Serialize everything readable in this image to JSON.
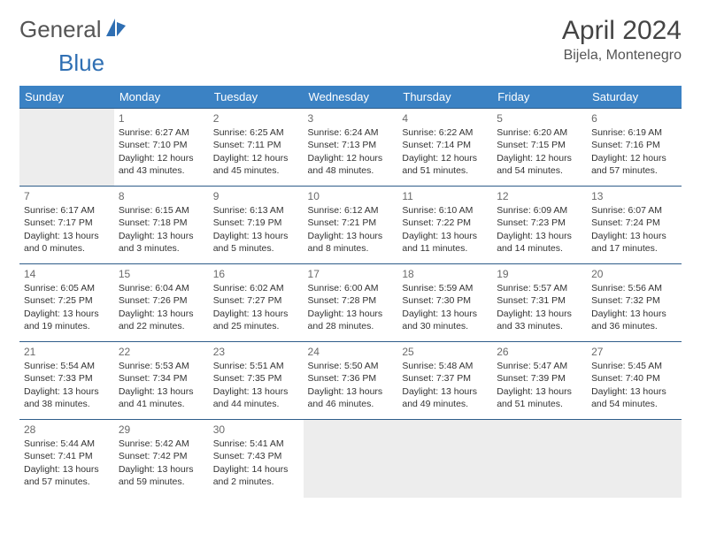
{
  "logo": {
    "part1": "General",
    "part2": "Blue",
    "text_color": "#6a6a6a",
    "accent_color": "#2f6fb3"
  },
  "title": "April 2024",
  "subtitle": "Bijela, Montenegro",
  "header_bg": "#3b82c4",
  "header_text": "#ffffff",
  "row_border": "#2f5d8a",
  "shaded_bg": "#ededed",
  "weekdays": [
    "Sunday",
    "Monday",
    "Tuesday",
    "Wednesday",
    "Thursday",
    "Friday",
    "Saturday"
  ],
  "weeks": [
    [
      {
        "blank": true,
        "shaded": true
      },
      {
        "day": "1",
        "sunrise": "6:27 AM",
        "sunset": "7:10 PM",
        "daylight": "12 hours and 43 minutes."
      },
      {
        "day": "2",
        "sunrise": "6:25 AM",
        "sunset": "7:11 PM",
        "daylight": "12 hours and 45 minutes."
      },
      {
        "day": "3",
        "sunrise": "6:24 AM",
        "sunset": "7:13 PM",
        "daylight": "12 hours and 48 minutes."
      },
      {
        "day": "4",
        "sunrise": "6:22 AM",
        "sunset": "7:14 PM",
        "daylight": "12 hours and 51 minutes."
      },
      {
        "day": "5",
        "sunrise": "6:20 AM",
        "sunset": "7:15 PM",
        "daylight": "12 hours and 54 minutes."
      },
      {
        "day": "6",
        "sunrise": "6:19 AM",
        "sunset": "7:16 PM",
        "daylight": "12 hours and 57 minutes."
      }
    ],
    [
      {
        "day": "7",
        "sunrise": "6:17 AM",
        "sunset": "7:17 PM",
        "daylight": "13 hours and 0 minutes."
      },
      {
        "day": "8",
        "sunrise": "6:15 AM",
        "sunset": "7:18 PM",
        "daylight": "13 hours and 3 minutes."
      },
      {
        "day": "9",
        "sunrise": "6:13 AM",
        "sunset": "7:19 PM",
        "daylight": "13 hours and 5 minutes."
      },
      {
        "day": "10",
        "sunrise": "6:12 AM",
        "sunset": "7:21 PM",
        "daylight": "13 hours and 8 minutes."
      },
      {
        "day": "11",
        "sunrise": "6:10 AM",
        "sunset": "7:22 PM",
        "daylight": "13 hours and 11 minutes."
      },
      {
        "day": "12",
        "sunrise": "6:09 AM",
        "sunset": "7:23 PM",
        "daylight": "13 hours and 14 minutes."
      },
      {
        "day": "13",
        "sunrise": "6:07 AM",
        "sunset": "7:24 PM",
        "daylight": "13 hours and 17 minutes."
      }
    ],
    [
      {
        "day": "14",
        "sunrise": "6:05 AM",
        "sunset": "7:25 PM",
        "daylight": "13 hours and 19 minutes."
      },
      {
        "day": "15",
        "sunrise": "6:04 AM",
        "sunset": "7:26 PM",
        "daylight": "13 hours and 22 minutes."
      },
      {
        "day": "16",
        "sunrise": "6:02 AM",
        "sunset": "7:27 PM",
        "daylight": "13 hours and 25 minutes."
      },
      {
        "day": "17",
        "sunrise": "6:00 AM",
        "sunset": "7:28 PM",
        "daylight": "13 hours and 28 minutes."
      },
      {
        "day": "18",
        "sunrise": "5:59 AM",
        "sunset": "7:30 PM",
        "daylight": "13 hours and 30 minutes."
      },
      {
        "day": "19",
        "sunrise": "5:57 AM",
        "sunset": "7:31 PM",
        "daylight": "13 hours and 33 minutes."
      },
      {
        "day": "20",
        "sunrise": "5:56 AM",
        "sunset": "7:32 PM",
        "daylight": "13 hours and 36 minutes."
      }
    ],
    [
      {
        "day": "21",
        "sunrise": "5:54 AM",
        "sunset": "7:33 PM",
        "daylight": "13 hours and 38 minutes."
      },
      {
        "day": "22",
        "sunrise": "5:53 AM",
        "sunset": "7:34 PM",
        "daylight": "13 hours and 41 minutes."
      },
      {
        "day": "23",
        "sunrise": "5:51 AM",
        "sunset": "7:35 PM",
        "daylight": "13 hours and 44 minutes."
      },
      {
        "day": "24",
        "sunrise": "5:50 AM",
        "sunset": "7:36 PM",
        "daylight": "13 hours and 46 minutes."
      },
      {
        "day": "25",
        "sunrise": "5:48 AM",
        "sunset": "7:37 PM",
        "daylight": "13 hours and 49 minutes."
      },
      {
        "day": "26",
        "sunrise": "5:47 AM",
        "sunset": "7:39 PM",
        "daylight": "13 hours and 51 minutes."
      },
      {
        "day": "27",
        "sunrise": "5:45 AM",
        "sunset": "7:40 PM",
        "daylight": "13 hours and 54 minutes."
      }
    ],
    [
      {
        "day": "28",
        "sunrise": "5:44 AM",
        "sunset": "7:41 PM",
        "daylight": "13 hours and 57 minutes."
      },
      {
        "day": "29",
        "sunrise": "5:42 AM",
        "sunset": "7:42 PM",
        "daylight": "13 hours and 59 minutes."
      },
      {
        "day": "30",
        "sunrise": "5:41 AM",
        "sunset": "7:43 PM",
        "daylight": "14 hours and 2 minutes."
      },
      {
        "blank": true,
        "shaded": true
      },
      {
        "blank": true,
        "shaded": true
      },
      {
        "blank": true,
        "shaded": true
      },
      {
        "blank": true,
        "shaded": true
      }
    ]
  ],
  "labels": {
    "sunrise": "Sunrise: ",
    "sunset": "Sunset: ",
    "daylight": "Daylight: "
  }
}
